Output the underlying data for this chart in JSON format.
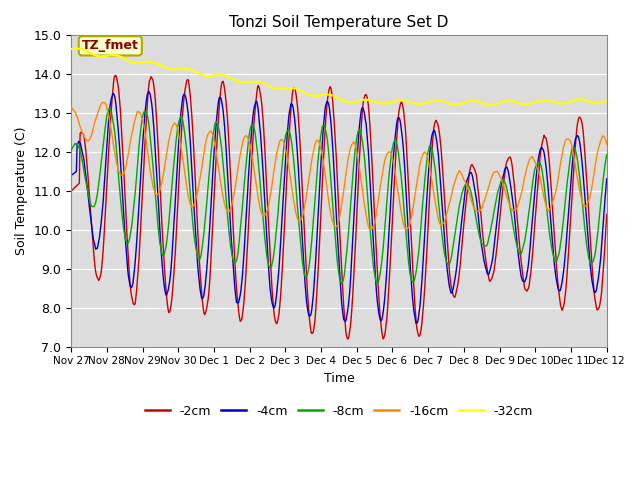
{
  "title": "Tonzi Soil Temperature Set D",
  "xlabel": "Time",
  "ylabel": "Soil Temperature (C)",
  "ylim": [
    7.0,
    15.0
  ],
  "yticks": [
    7.0,
    8.0,
    9.0,
    10.0,
    11.0,
    12.0,
    13.0,
    14.0,
    15.0
  ],
  "bg_color": "#dcdcdc",
  "fig_color": "#ffffff",
  "label_box": "TZ_fmet",
  "series": {
    "-2cm": {
      "color": "#cc0000",
      "linewidth": 1.0
    },
    "-4cm": {
      "color": "#0000cc",
      "linewidth": 1.0
    },
    "-8cm": {
      "color": "#00aa00",
      "linewidth": 1.0
    },
    "-16cm": {
      "color": "#ff8800",
      "linewidth": 1.0
    },
    "-32cm": {
      "color": "#ffff00",
      "linewidth": 1.5
    }
  },
  "xtick_labels": [
    "Nov 27",
    "Nov 28",
    "Nov 29",
    "Nov 30",
    "Dec 1",
    "Dec 2",
    "Dec 3",
    "Dec 4",
    "Dec 5",
    "Dec 6",
    "Dec 7",
    "Dec 8",
    "Dec 9",
    "Dec 10",
    "Dec 11",
    "Dec 12"
  ],
  "n_points": 720,
  "center_2cm": [
    11.0,
    11.1,
    11.0,
    10.9,
    10.8,
    10.7,
    10.6,
    10.5,
    10.4,
    10.3,
    10.2,
    10.15,
    10.2,
    10.3,
    10.4
  ],
  "amp_2cm": [
    1.0,
    2.8,
    3.0,
    3.0,
    3.0,
    3.0,
    3.0,
    3.2,
    3.2,
    3.0,
    3.0,
    1.5,
    1.5,
    2.0,
    2.5
  ],
  "center_4cm": [
    11.4,
    11.2,
    11.0,
    10.9,
    10.8,
    10.7,
    10.6,
    10.5,
    10.4,
    10.3,
    10.2,
    10.15,
    10.2,
    10.3,
    10.4
  ],
  "amp_4cm": [
    0.5,
    2.3,
    2.6,
    2.6,
    2.6,
    2.6,
    2.6,
    2.8,
    2.8,
    2.6,
    2.6,
    1.3,
    1.3,
    1.8,
    2.0
  ],
  "center_8cm": [
    11.8,
    11.5,
    11.3,
    11.1,
    11.0,
    10.9,
    10.8,
    10.7,
    10.6,
    10.5,
    10.4,
    10.35,
    10.4,
    10.5,
    10.6
  ],
  "amp_8cm": [
    0.3,
    1.6,
    1.8,
    1.8,
    1.8,
    1.8,
    1.8,
    2.0,
    2.0,
    1.8,
    1.8,
    0.8,
    0.8,
    1.2,
    1.5
  ],
  "center_16cm": [
    13.0,
    12.5,
    12.0,
    11.7,
    11.5,
    11.4,
    11.3,
    11.2,
    11.1,
    11.0,
    11.0,
    10.9,
    11.0,
    11.2,
    11.5
  ],
  "amp_16cm": [
    0.2,
    0.8,
    1.0,
    1.0,
    1.0,
    1.0,
    1.0,
    1.1,
    1.1,
    1.0,
    1.0,
    0.5,
    0.5,
    0.7,
    0.9
  ],
  "phase_2cm": 0.0,
  "phase_4cm": 0.15,
  "phase_8cm": 0.35,
  "phase_16cm": 0.7
}
